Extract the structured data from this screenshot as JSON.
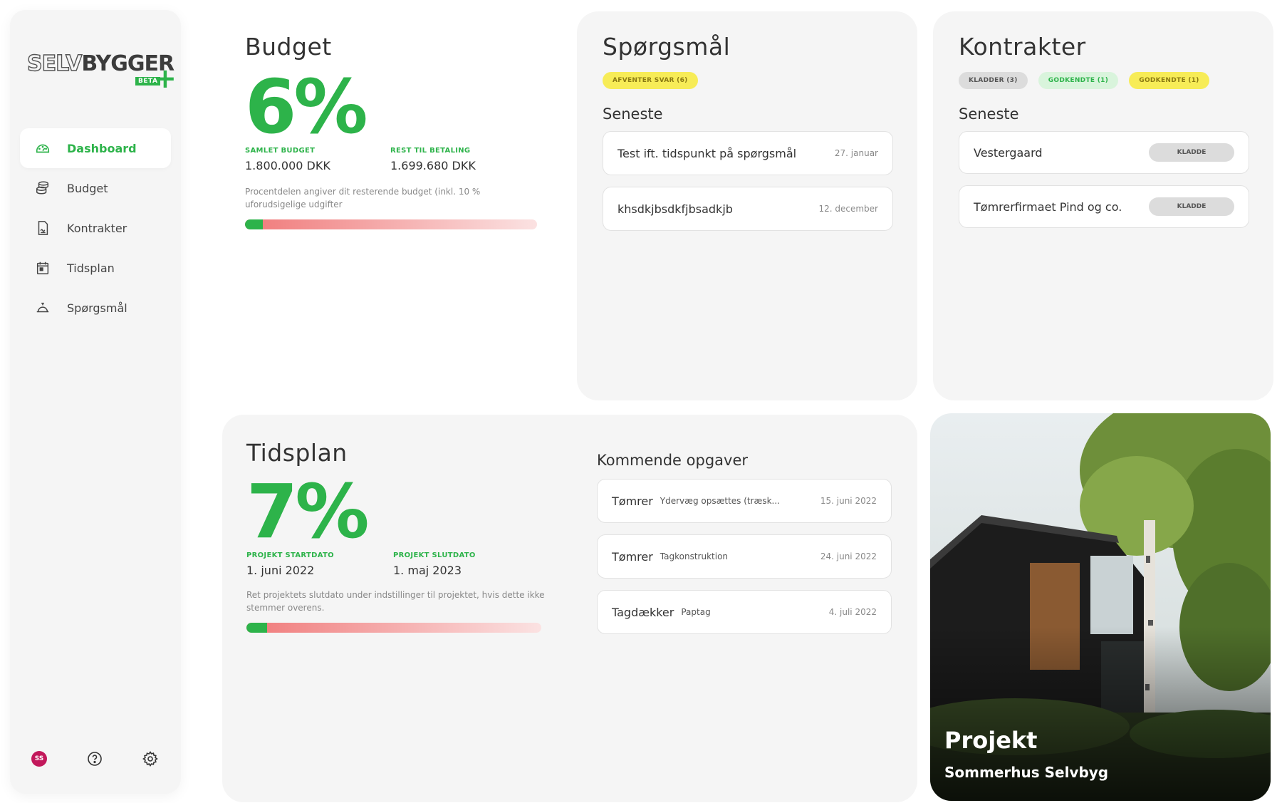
{
  "logo": {
    "text_outline": "SELV",
    "text_bold": "BYGGER",
    "plus": "+",
    "beta": "BETA"
  },
  "sidebar": {
    "items": [
      {
        "label": "Dashboard",
        "icon": "dashboard-icon",
        "active": true
      },
      {
        "label": "Budget",
        "icon": "coins-icon",
        "active": false
      },
      {
        "label": "Kontrakter",
        "icon": "contract-icon",
        "active": false
      },
      {
        "label": "Tidsplan",
        "icon": "calendar-icon",
        "active": false
      },
      {
        "label": "Spørgsmål",
        "icon": "bell-icon",
        "active": false
      }
    ],
    "avatar_initials": "SS",
    "help_icon": "help-icon",
    "settings_icon": "gear-icon"
  },
  "budget": {
    "title": "Budget",
    "percent": "6%",
    "total_label": "SAMLET BUDGET",
    "total_value": "1.800.000 DKK",
    "remaining_label": "REST TIL BETALING",
    "remaining_value": "1.699.680 DKK",
    "note": "Procentdelen angiver dit resterende budget (inkl. 10 % uforudsigelige udgifter",
    "progress": 0.06
  },
  "questions": {
    "title": "Spørgsmål",
    "badge": "AFVENTER SVAR (6)",
    "latest_heading": "Seneste",
    "items": [
      {
        "title": "Test ift. tidspunkt på spørgsmål",
        "date": "27. januar"
      },
      {
        "title": "khsdkjbsdkfjbsadkjb",
        "date": "12. december"
      }
    ]
  },
  "contracts": {
    "title": "Kontrakter",
    "badges": [
      {
        "label": "KLADDER (3)",
        "style": "grey"
      },
      {
        "label": "GODKENDTE (1)",
        "style": "green"
      },
      {
        "label": "GODKENDTE (1)",
        "style": "yellow"
      }
    ],
    "latest_heading": "Seneste",
    "items": [
      {
        "title": "Vestergaard",
        "status": "KLADDE"
      },
      {
        "title": "Tømrerfirmaet Pind og co.",
        "status": "KLADDE"
      }
    ]
  },
  "schedule": {
    "title": "Tidsplan",
    "percent": "7%",
    "start_label": "PROJEKT STARTDATO",
    "start_value": "1. juni 2022",
    "end_label": "PROJEKT SLUTDATO",
    "end_value": "1. maj 2023",
    "note": "Ret projektets slutdato under indstillinger til projektet, hvis dette ikke stemmer overens.",
    "progress": 0.07,
    "upcoming_heading": "Kommende opgaver",
    "tasks": [
      {
        "trade": "Tømrer",
        "desc": "Ydervæg opsættes (træsk...",
        "date": "15. juni 2022"
      },
      {
        "trade": "Tømrer",
        "desc": "Tagkonstruktion",
        "date": "24. juni 2022"
      },
      {
        "trade": "Tagdækker",
        "desc": "Paptag",
        "date": "4. juli 2022"
      }
    ]
  },
  "project": {
    "label": "Projekt",
    "name": "Sommerhus Selvbyg"
  },
  "colors": {
    "accent": "#2db34a",
    "card_bg": "#f5f5f5",
    "badge_yellow": "#f7ec57",
    "badge_green": "#d9f4dc",
    "badge_grey": "#dcdcdc",
    "avatar": "#c2185b"
  }
}
